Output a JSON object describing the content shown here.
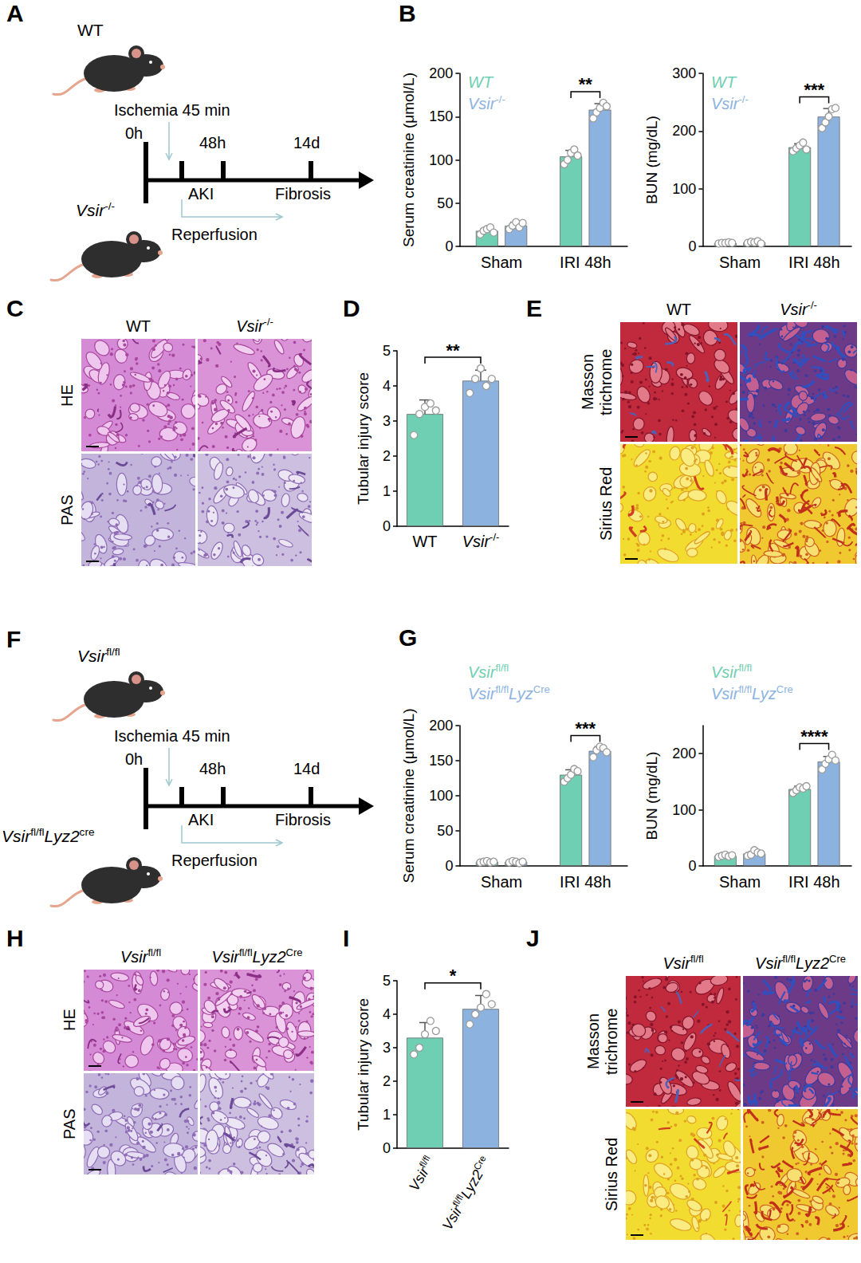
{
  "diagrams": [
    {
      "letter": "A",
      "top_label": [
        {
          "t": "WT"
        }
      ],
      "bottom_label": [
        {
          "t": "Vsir",
          "sup": "-/-"
        }
      ],
      "ischemia": "Ischemia 45 min",
      "start": "0h",
      "time_labels": [
        "48h",
        "14d"
      ],
      "phase_labels": [
        "AKI",
        "Fibrosis"
      ],
      "reperfusion": "Reperfusion"
    },
    {
      "letter": "F",
      "top_label": [
        {
          "t": "Vsir",
          "sup": "fl/fl"
        }
      ],
      "bottom_label": [
        {
          "t": "Vsir",
          "sup": "fl/fl"
        },
        {
          "t": "Lyz2",
          "sup": "cre"
        }
      ],
      "ischemia": "Ischemia 45 min",
      "start": "0h",
      "time_labels": [
        "48h",
        "14d"
      ],
      "phase_labels": [
        "AKI",
        "Fibrosis"
      ],
      "reperfusion": "Reperfusion"
    }
  ],
  "chart_data": [
    {
      "letter": "B",
      "type": "bar",
      "categories": [
        "Sham",
        "IRI 48h"
      ],
      "ylabel": "Serum creatinine (μmol/L)",
      "ylim": [
        0,
        200
      ],
      "yticks": [
        0,
        50,
        100,
        150,
        200
      ],
      "grid": false,
      "legend": "upper left",
      "series": [
        {
          "name": [
            {
              "t": "WT"
            }
          ],
          "color": "#6fcfb2",
          "values": [
            18,
            104
          ],
          "errors": [
            3,
            7
          ],
          "points": [
            [
              14,
              18,
              20,
              22,
              16
            ],
            [
              95,
              100,
              108,
              112,
              105
            ]
          ]
        },
        {
          "name": [
            {
              "t": "Vsir",
              "sup": "-/-"
            }
          ],
          "color": "#8cb3e0",
          "values": [
            24,
            158
          ],
          "errors": [
            4,
            7
          ],
          "points": [
            [
              20,
              24,
              28,
              22,
              27
            ],
            [
              148,
              155,
              160,
              166,
              162
            ]
          ]
        }
      ],
      "significance": [
        {
          "category": 1,
          "label": "**"
        }
      ]
    },
    {
      "type": "bar",
      "categories": [
        "Sham",
        "IRI 48h"
      ],
      "ylabel": "BUN (mg/dL)",
      "ylim": [
        0,
        300
      ],
      "yticks": [
        0,
        100,
        200,
        300
      ],
      "grid": false,
      "legend": "upper left",
      "series": [
        {
          "name": [
            {
              "t": "WT"
            }
          ],
          "color": "#6fcfb2",
          "values": [
            6,
            172
          ],
          "errors": [
            1,
            6
          ],
          "points": [
            [
              5,
              6,
              6,
              7,
              6
            ],
            [
              165,
              170,
              175,
              180,
              168
            ]
          ]
        },
        {
          "name": [
            {
              "t": "Vsir",
              "sup": "-/-"
            }
          ],
          "color": "#8cb3e0",
          "values": [
            7,
            225
          ],
          "errors": [
            2,
            14
          ],
          "points": [
            [
              6,
              8,
              7,
              9,
              5
            ],
            [
              205,
              215,
              225,
              238,
              240
            ]
          ]
        }
      ],
      "significance": [
        {
          "category": 1,
          "label": "***"
        }
      ]
    },
    {
      "letter": "D",
      "type": "bar",
      "categories": [
        [
          {
            "t": "WT"
          }
        ],
        [
          {
            "t": "Vsir",
            "sup": "-/-"
          }
        ]
      ],
      "ylabel": "Tubular injury score",
      "ylim": [
        0,
        5
      ],
      "yticks": [
        0,
        1,
        2,
        3,
        4,
        5
      ],
      "grid": false,
      "values": [
        3.2,
        4.15
      ],
      "errors": [
        0.4,
        0.3
      ],
      "points": [
        [
          2.6,
          3.2,
          3.4,
          3.5,
          3.3
        ],
        [
          3.8,
          4.2,
          4.5,
          4.0,
          4.2
        ]
      ],
      "colors": [
        "#6fcfb2",
        "#8cb3e0"
      ],
      "significance": [
        {
          "from": 0,
          "to": 1,
          "label": "**"
        }
      ]
    },
    {
      "letter": "G",
      "type": "bar",
      "categories": [
        "Sham",
        "IRI 48h"
      ],
      "ylabel": "Serum creatinine (μmol/L)",
      "ylim": [
        0,
        200
      ],
      "yticks": [
        0,
        50,
        100,
        150,
        200
      ],
      "grid": false,
      "legend": "upper left",
      "series": [
        {
          "name": [
            {
              "t": "Vsir",
              "sup": "fl/fl"
            }
          ],
          "color": "#6fcfb2",
          "values": [
            6,
            130
          ],
          "errors": [
            1,
            7
          ],
          "points": [
            [
              5,
              6,
              7,
              5,
              6
            ],
            [
              120,
              125,
              130,
              138,
              135
            ]
          ]
        },
        {
          "name": [
            {
              "t": "Vsir",
              "sup": "fl/fl"
            },
            {
              "t": "Lyz",
              "sup": "Cre"
            }
          ],
          "color": "#8cb3e0",
          "values": [
            6,
            164
          ],
          "errors": [
            1,
            6
          ],
          "points": [
            [
              5,
              7,
              6,
              4,
              6
            ],
            [
              155,
              165,
              170,
              168,
              162
            ]
          ]
        }
      ],
      "significance": [
        {
          "category": 1,
          "label": "***"
        }
      ]
    },
    {
      "type": "bar",
      "categories": [
        "Sham",
        "IRI 48h"
      ],
      "ylabel": "BUN (mg/dL)",
      "ylim": [
        0,
        250
      ],
      "yticks": [
        0,
        100,
        200
      ],
      "grid": false,
      "legend": "upper left",
      "series": [
        {
          "name": [
            {
              "t": "Vsir",
              "sup": "fl/fl"
            }
          ],
          "color": "#6fcfb2",
          "values": [
            18,
            137
          ],
          "errors": [
            2,
            5
          ],
          "points": [
            [
              16,
              18,
              20,
              17,
              19
            ],
            [
              130,
              135,
              140,
              138,
              142
            ]
          ]
        },
        {
          "name": [
            {
              "t": "Vsir",
              "sup": "fl/fl"
            },
            {
              "t": "Lyz",
              "sup": "Cre"
            }
          ],
          "color": "#8cb3e0",
          "values": [
            22,
            186
          ],
          "errors": [
            4,
            9
          ],
          "points": [
            [
              18,
              20,
              28,
              24,
              22
            ],
            [
              172,
              182,
              190,
              198,
              188
            ]
          ]
        }
      ],
      "significance": [
        {
          "category": 1,
          "label": "****"
        }
      ]
    },
    {
      "letter": "I",
      "type": "bar",
      "categories": [
        [
          {
            "t": "Vsir",
            "sup": "fl/fl"
          }
        ],
        [
          {
            "t": "Vsir",
            "sup": "fl/fl"
          },
          {
            "t": "Lyz2",
            "sup": "Cre"
          }
        ]
      ],
      "ylabel": "Tubular injury score",
      "ylim": [
        0,
        5
      ],
      "yticks": [
        0,
        1,
        2,
        3,
        4,
        5
      ],
      "grid": false,
      "values": [
        3.3,
        4.16
      ],
      "errors": [
        0.45,
        0.4
      ],
      "points": [
        [
          2.8,
          3.0,
          3.4,
          3.8,
          3.5
        ],
        [
          3.7,
          4.0,
          4.2,
          4.6,
          4.3
        ]
      ],
      "colors": [
        "#6fcfb2",
        "#8cb3e0"
      ],
      "significance": [
        {
          "from": 0,
          "to": 1,
          "label": "*"
        }
      ]
    }
  ],
  "image_panels": [
    {
      "letter": "C",
      "columns": [
        [
          {
            "t": "WT"
          }
        ],
        [
          {
            "t": "Vsir",
            "sup": "-/-"
          }
        ]
      ],
      "rows": [
        "HE",
        "PAS"
      ]
    },
    {
      "letter": "E",
      "columns": [
        [
          {
            "t": "WT"
          }
        ],
        [
          {
            "t": "Vsir",
            "sup": "-/-"
          }
        ]
      ],
      "rows": [
        "Masson trichrome",
        "Sirius Red"
      ]
    },
    {
      "letter": "H",
      "columns": [
        [
          {
            "t": "Vsir",
            "sup": "fl/fl"
          }
        ],
        [
          {
            "t": "Vsir",
            "sup": "fl/fl"
          },
          {
            "t": "Lyz2",
            "sup": "Cre"
          }
        ]
      ],
      "rows": [
        "HE",
        "PAS"
      ]
    },
    {
      "letter": "J",
      "columns": [
        [
          {
            "t": "Vsir",
            "sup": "fl/fl"
          }
        ],
        [
          {
            "t": "Vsir",
            "sup": "fl/fl"
          },
          {
            "t": "Lyz2",
            "sup": "Cre"
          }
        ]
      ],
      "rows": [
        "Masson trichrome",
        "Sirius Red"
      ]
    }
  ]
}
